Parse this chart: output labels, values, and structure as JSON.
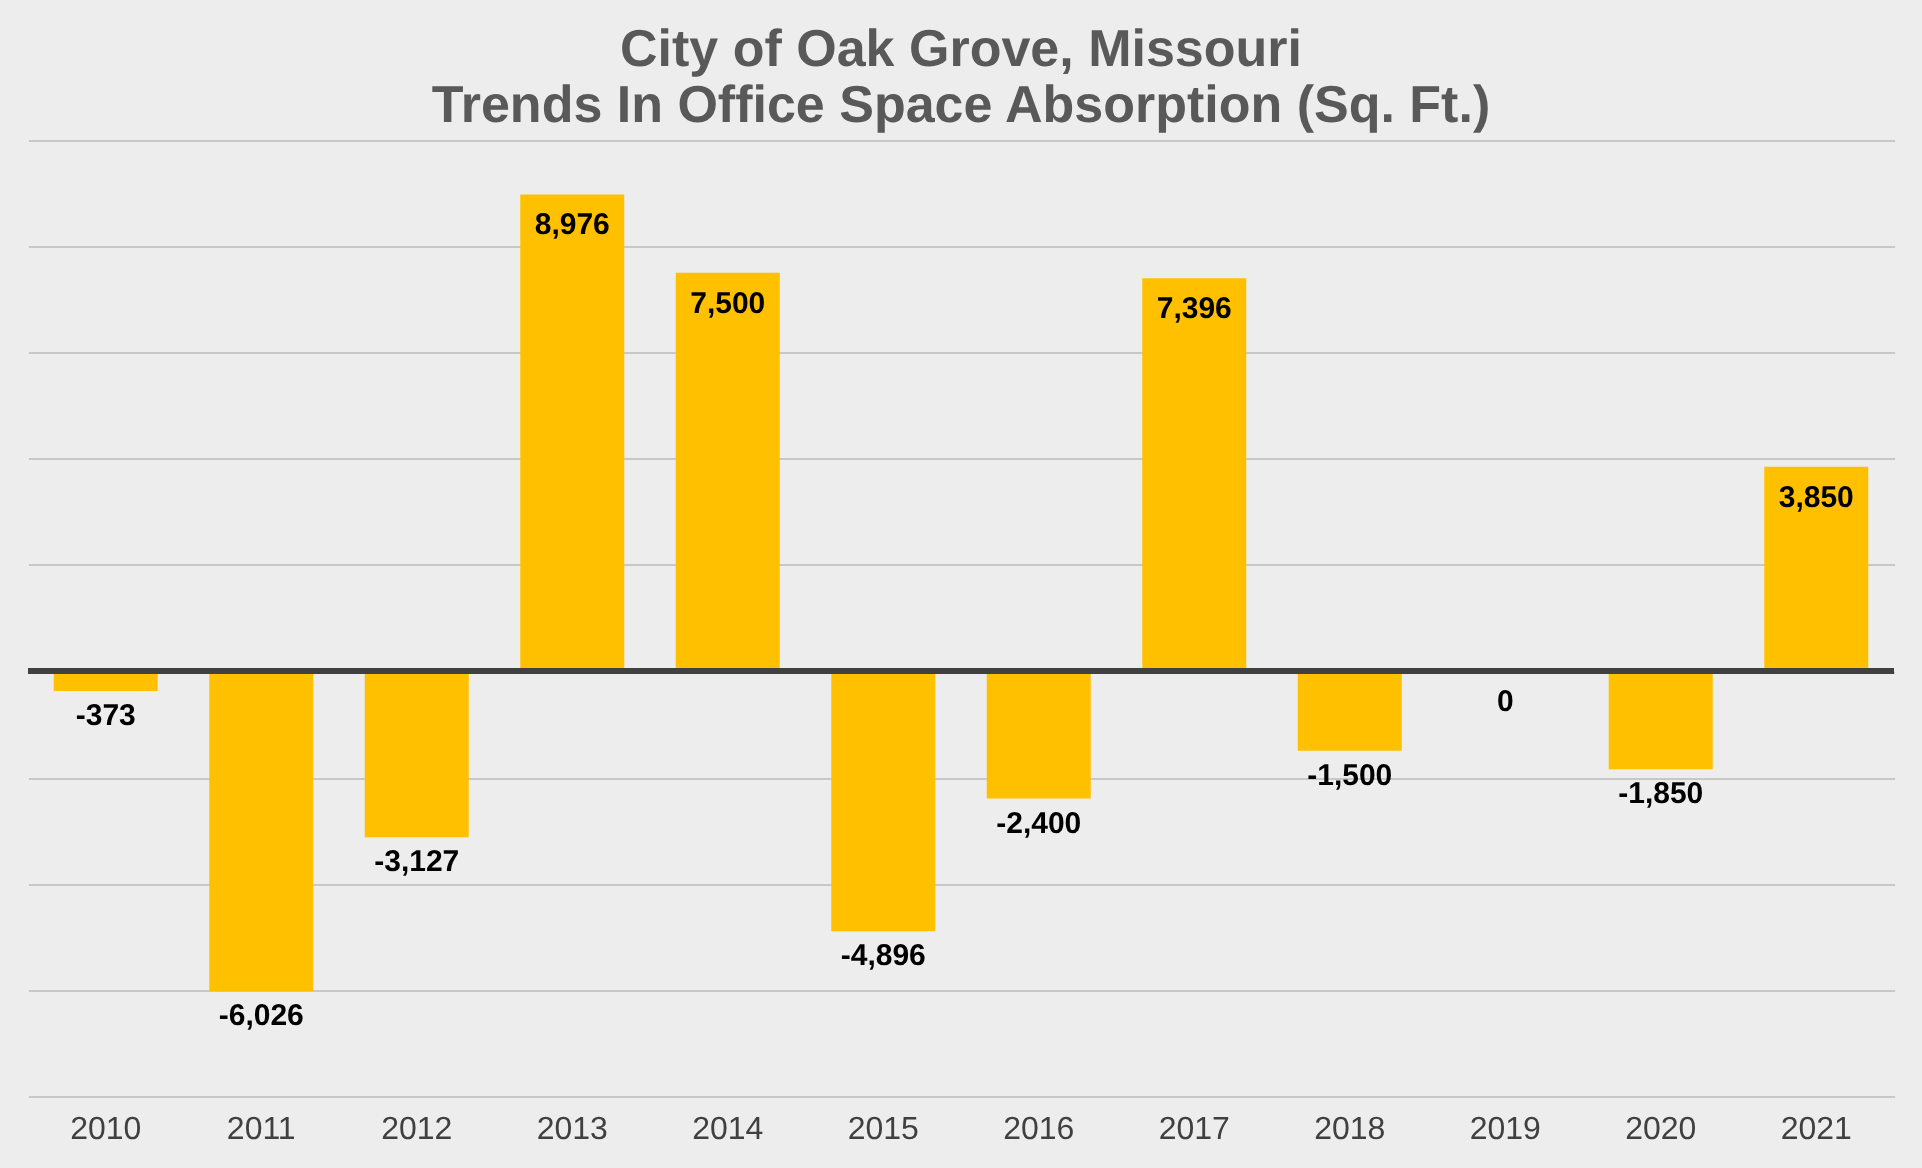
{
  "chart_data": {
    "type": "bar",
    "title": [
      "City of Oak Grove, Missouri",
      "Trends In Office Space Absorption (Sq. Ft.)"
    ],
    "categories": [
      "2010",
      "2011",
      "2012",
      "2013",
      "2014",
      "2015",
      "2016",
      "2017",
      "2018",
      "2019",
      "2020",
      "2021"
    ],
    "values": [
      -373,
      -6026,
      -3127,
      8976,
      7500,
      -4896,
      -2400,
      7396,
      -1500,
      0,
      -1850,
      3850
    ],
    "value_labels": [
      "-373",
      "-6,026",
      "-3,127",
      "8,976",
      "7,500",
      "-4,896",
      "-2,400",
      "7,396",
      "-1,500",
      "0",
      "-1,850",
      "3,850"
    ],
    "color": "#ffc000",
    "grid": "y",
    "tick_labels": "x"
  }
}
